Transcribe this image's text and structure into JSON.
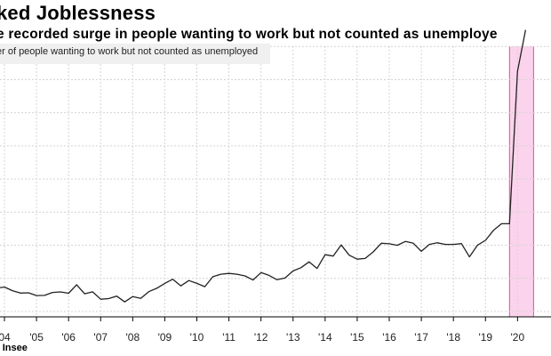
{
  "title": "ked Joblessness",
  "subtitle": "e recorded surge in people wanting to work but not counted as unemploye",
  "source": ": Insee",
  "chart_data": {
    "type": "line",
    "series": [
      {
        "name": "er of people wanting to work but not counted as unemployed",
        "color": "#222222",
        "x": [
          2003.75,
          2004.0,
          2004.25,
          2004.5,
          2004.75,
          2005.0,
          2005.25,
          2005.5,
          2005.75,
          2006.0,
          2006.25,
          2006.5,
          2006.75,
          2007.0,
          2007.25,
          2007.5,
          2007.75,
          2008.0,
          2008.25,
          2008.5,
          2008.75,
          2009.0,
          2009.25,
          2009.5,
          2009.75,
          2010.0,
          2010.25,
          2010.5,
          2010.75,
          2011.0,
          2011.25,
          2011.5,
          2011.75,
          2012.0,
          2012.25,
          2012.5,
          2012.75,
          2013.0,
          2013.25,
          2013.5,
          2013.75,
          2014.0,
          2014.25,
          2014.5,
          2014.75,
          2015.0,
          2015.25,
          2015.5,
          2015.75,
          2016.0,
          2016.25,
          2016.5,
          2016.75,
          2017.0,
          2017.25,
          2017.5,
          2017.75,
          2018.0,
          2018.25,
          2018.5,
          2018.75,
          2019.0,
          2019.25,
          2019.5,
          2019.75,
          2020.0,
          2020.25
        ],
        "y": [
          140,
          148,
          126,
          111,
          113,
          96,
          97,
          115,
          118,
          110,
          162,
          107,
          119,
          74,
          78,
          93,
          58,
          90,
          79,
          120,
          140,
          170,
          195,
          155,
          187,
          170,
          150,
          210,
          225,
          230,
          225,
          215,
          190,
          235,
          218,
          192,
          202,
          245,
          265,
          300,
          260,
          343,
          335,
          402,
          340,
          316,
          320,
          360,
          412,
          409,
          400,
          423,
          412,
          363,
          405,
          415,
          405,
          405,
          410,
          330,
          400,
          430,
          490,
          530,
          530,
          1450,
          1700
        ]
      }
    ],
    "x_ticks": [
      2004,
      2005,
      2006,
      2007,
      2008,
      2009,
      2010,
      2011,
      2012,
      2013,
      2014,
      2015,
      2016,
      2017,
      2018,
      2019,
      2020
    ],
    "x_tick_labels": [
      "04",
      "'05",
      "'06",
      "'07",
      "'08",
      "'09",
      "'10",
      "'11",
      "'12",
      "'13",
      "'14",
      "'15",
      "'16",
      "'17",
      "'18",
      "'19",
      "'20"
    ],
    "xlim": [
      2004.0,
      2020.6
    ],
    "ylim": [
      0,
      1800
    ],
    "grid_levels": [
      0,
      200,
      400,
      600,
      800,
      1000,
      1200,
      1400,
      1600
    ],
    "grid": true,
    "legend_position": "top-left",
    "highlight_span": {
      "from": 2019.75,
      "to": 2020.5,
      "color": "#fbd3ec",
      "border": "#e0509a"
    }
  }
}
